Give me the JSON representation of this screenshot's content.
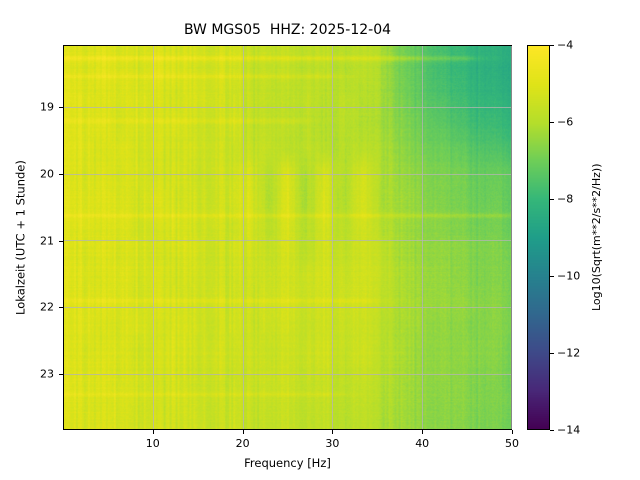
{
  "chart_data": {
    "type": "heatmap",
    "title": "BW MGS05  HHZ: 2025-12-04",
    "station": "BW MGS05",
    "channel": "HHZ",
    "date": "2025-12-04",
    "xlabel": "Frequency [Hz]",
    "ylabel": "Lokalzeit (UTC + 1 Stunde)",
    "x_range_hz": [
      0,
      50
    ],
    "x_ticks_hz": [
      10,
      20,
      30,
      40,
      50
    ],
    "y_range_hours_local": [
      18.08,
      23.83
    ],
    "y_ticks_hours": [
      19,
      20,
      21,
      22,
      23
    ],
    "grid": true,
    "colorbar": {
      "label": "Log10(Sqrt(m**2/s**2/Hz))",
      "ticks": [
        -4,
        -6,
        -8,
        -10,
        -12,
        -14
      ],
      "vmin": -14,
      "vmax": -4,
      "colormap": "viridis",
      "colormap_stops": [
        "#440154",
        "#482878",
        "#3e4a89",
        "#31688e",
        "#26828e",
        "#1f9e89",
        "#35b779",
        "#6ece58",
        "#b5de2b",
        "#dfe318",
        "#fde725"
      ]
    },
    "values_note": "Estimated Log10 spectral amplitude; rows = local time top 18:05 to bottom 23:50, cols = frequency 0 to 50 Hz in 2 Hz bins",
    "values_log10": [
      [
        -4.9,
        -5.1,
        -5.0,
        -5.3,
        -5.2,
        -5.1,
        -5.3,
        -5.2,
        -5.4,
        -5.3,
        -5.6,
        -5.7,
        -5.6,
        -5.8,
        -5.7,
        -5.9,
        -5.8,
        -6.0,
        -6.8,
        -7.2,
        -7.6,
        -7.9,
        -8.1,
        -8.3,
        -8.4
      ],
      [
        -5.0,
        -5.2,
        -4.9,
        -5.2,
        -5.3,
        -5.0,
        -5.2,
        -5.3,
        -5.3,
        -5.4,
        -5.7,
        -5.8,
        -5.7,
        -5.9,
        -5.8,
        -6.0,
        -5.9,
        -6.1,
        -6.9,
        -7.3,
        -7.7,
        -8.0,
        -8.2,
        -8.4,
        -8.5
      ],
      [
        -4.8,
        -5.0,
        -5.1,
        -5.2,
        -5.1,
        -5.2,
        -5.4,
        -5.1,
        -5.3,
        -5.5,
        -5.6,
        -5.8,
        -5.8,
        -5.7,
        -5.9,
        -5.8,
        -6.0,
        -6.1,
        -6.8,
        -7.2,
        -7.5,
        -7.8,
        -8.0,
        -8.2,
        -8.3
      ],
      [
        -5.0,
        -5.1,
        -5.0,
        -5.4,
        -5.2,
        -5.3,
        -5.2,
        -5.4,
        -5.5,
        -5.4,
        -5.7,
        -5.9,
        -5.8,
        -5.9,
        -6.0,
        -5.9,
        -6.1,
        -6.2,
        -6.7,
        -7.0,
        -7.3,
        -7.6,
        -7.8,
        -8.0,
        -8.1
      ],
      [
        -4.9,
        -5.0,
        -5.2,
        -5.1,
        -5.3,
        -5.2,
        -5.4,
        -5.3,
        -5.4,
        -5.6,
        -5.6,
        -5.7,
        -5.9,
        -5.8,
        -5.9,
        -6.0,
        -5.9,
        -6.0,
        -6.5,
        -6.8,
        -7.0,
        -7.2,
        -7.4,
        -7.6,
        -7.7
      ],
      [
        -5.0,
        -5.2,
        -5.1,
        -5.3,
        -5.2,
        -5.4,
        -5.3,
        -5.5,
        -5.4,
        -5.5,
        -5.2,
        -6.1,
        -5.1,
        -6.2,
        -5.2,
        -6.1,
        -5.3,
        -6.0,
        -6.4,
        -6.6,
        -6.8,
        -6.9,
        -7.1,
        -7.2,
        -7.2
      ],
      [
        -4.9,
        -5.1,
        -5.0,
        -5.2,
        -5.3,
        -5.1,
        -5.4,
        -5.3,
        -5.5,
        -5.4,
        -5.1,
        -6.2,
        -5.0,
        -6.3,
        -5.1,
        -6.2,
        -5.2,
        -6.1,
        -6.3,
        -6.5,
        -6.7,
        -6.9,
        -7.0,
        -7.1,
        -7.2
      ],
      [
        -5.1,
        -5.0,
        -5.2,
        -5.1,
        -5.4,
        -5.3,
        -5.2,
        -5.4,
        -5.3,
        -5.6,
        -5.2,
        -6.0,
        -5.1,
        -6.1,
        -5.2,
        -6.0,
        -5.3,
        -5.9,
        -6.3,
        -6.5,
        -6.6,
        -6.8,
        -6.9,
        -7.0,
        -7.1
      ],
      [
        -5.0,
        -5.2,
        -5.0,
        -5.3,
        -5.2,
        -5.4,
        -5.3,
        -5.2,
        -5.5,
        -5.4,
        -5.3,
        -5.8,
        -5.2,
        -5.9,
        -5.3,
        -5.8,
        -5.4,
        -5.7,
        -6.2,
        -6.4,
        -6.5,
        -6.6,
        -6.7,
        -6.8,
        -6.9
      ],
      [
        -4.9,
        -5.1,
        -5.2,
        -5.1,
        -5.3,
        -5.2,
        -5.4,
        -5.3,
        -5.4,
        -5.5,
        -5.4,
        -5.6,
        -5.3,
        -5.5,
        -5.2,
        -5.6,
        -5.3,
        -5.6,
        -6.1,
        -6.3,
        -6.4,
        -6.6,
        -6.7,
        -6.8,
        -6.8
      ],
      [
        -5.0,
        -5.1,
        -5.0,
        -5.2,
        -5.3,
        -5.2,
        -5.3,
        -5.4,
        -5.3,
        -5.5,
        -5.4,
        -5.5,
        -5.2,
        -5.6,
        -5.3,
        -5.5,
        -5.4,
        -5.7,
        -6.1,
        -6.3,
        -6.4,
        -6.5,
        -6.6,
        -6.7,
        -6.8
      ],
      [
        -5.1,
        -5.0,
        -5.2,
        -5.3,
        -5.1,
        -5.4,
        -5.2,
        -5.3,
        -5.5,
        -5.4,
        -5.5,
        -5.6,
        -5.3,
        -5.7,
        -5.4,
        -5.6,
        -5.5,
        -5.8,
        -6.2,
        -6.3,
        -6.5,
        -6.6,
        -6.7,
        -6.7,
        -6.8
      ],
      [
        -5.0,
        -5.2,
        -5.1,
        -5.2,
        -5.4,
        -5.3,
        -5.2,
        -5.4,
        -5.3,
        -5.5,
        -5.4,
        -5.7,
        -5.4,
        -5.6,
        -5.3,
        -5.7,
        -5.4,
        -5.8,
        -6.1,
        -6.4,
        -6.5,
        -6.6,
        -6.6,
        -6.7,
        -6.9
      ],
      [
        -4.9,
        -5.1,
        -5.0,
        -5.3,
        -5.2,
        -5.4,
        -5.3,
        -5.5,
        -5.4,
        -5.6,
        -5.5,
        -5.6,
        -5.4,
        -5.7,
        -5.5,
        -5.8,
        -5.6,
        -5.9,
        -6.2,
        -6.4,
        -6.5,
        -6.6,
        -6.7,
        -6.8,
        -6.9
      ],
      [
        -5.0,
        -5.1,
        -5.2,
        -5.2,
        -5.3,
        -5.4,
        -5.3,
        -5.4,
        -5.5,
        -5.5,
        -5.6,
        -5.7,
        -5.5,
        -5.8,
        -5.6,
        -5.9,
        -5.7,
        -6.0,
        -6.2,
        -6.4,
        -6.6,
        -6.6,
        -6.7,
        -6.8,
        -6.9
      ],
      [
        -5.1,
        -5.2,
        -5.1,
        -5.3,
        -5.4,
        -5.3,
        -5.5,
        -5.4,
        -5.6,
        -5.5,
        -5.7,
        -5.8,
        -5.6,
        -5.9,
        -5.7,
        -6.0,
        -5.8,
        -6.1,
        -6.3,
        -6.5,
        -6.6,
        -6.7,
        -6.8,
        -6.9,
        -7.0
      ]
    ],
    "events": [
      {
        "hour": 18.26,
        "fmax_hz": 45,
        "amp": 0.7
      },
      {
        "hour": 18.53,
        "fmax_hz": 30,
        "amp": 0.45
      },
      {
        "hour": 19.2,
        "fmax_hz": 26,
        "amp": 0.4
      },
      {
        "hour": 20.62,
        "fmax_hz": 50,
        "amp": 0.45
      },
      {
        "hour": 21.9,
        "fmax_hz": 34,
        "amp": 0.4
      },
      {
        "hour": 23.3,
        "fmax_hz": 30,
        "amp": 0.35
      }
    ]
  }
}
